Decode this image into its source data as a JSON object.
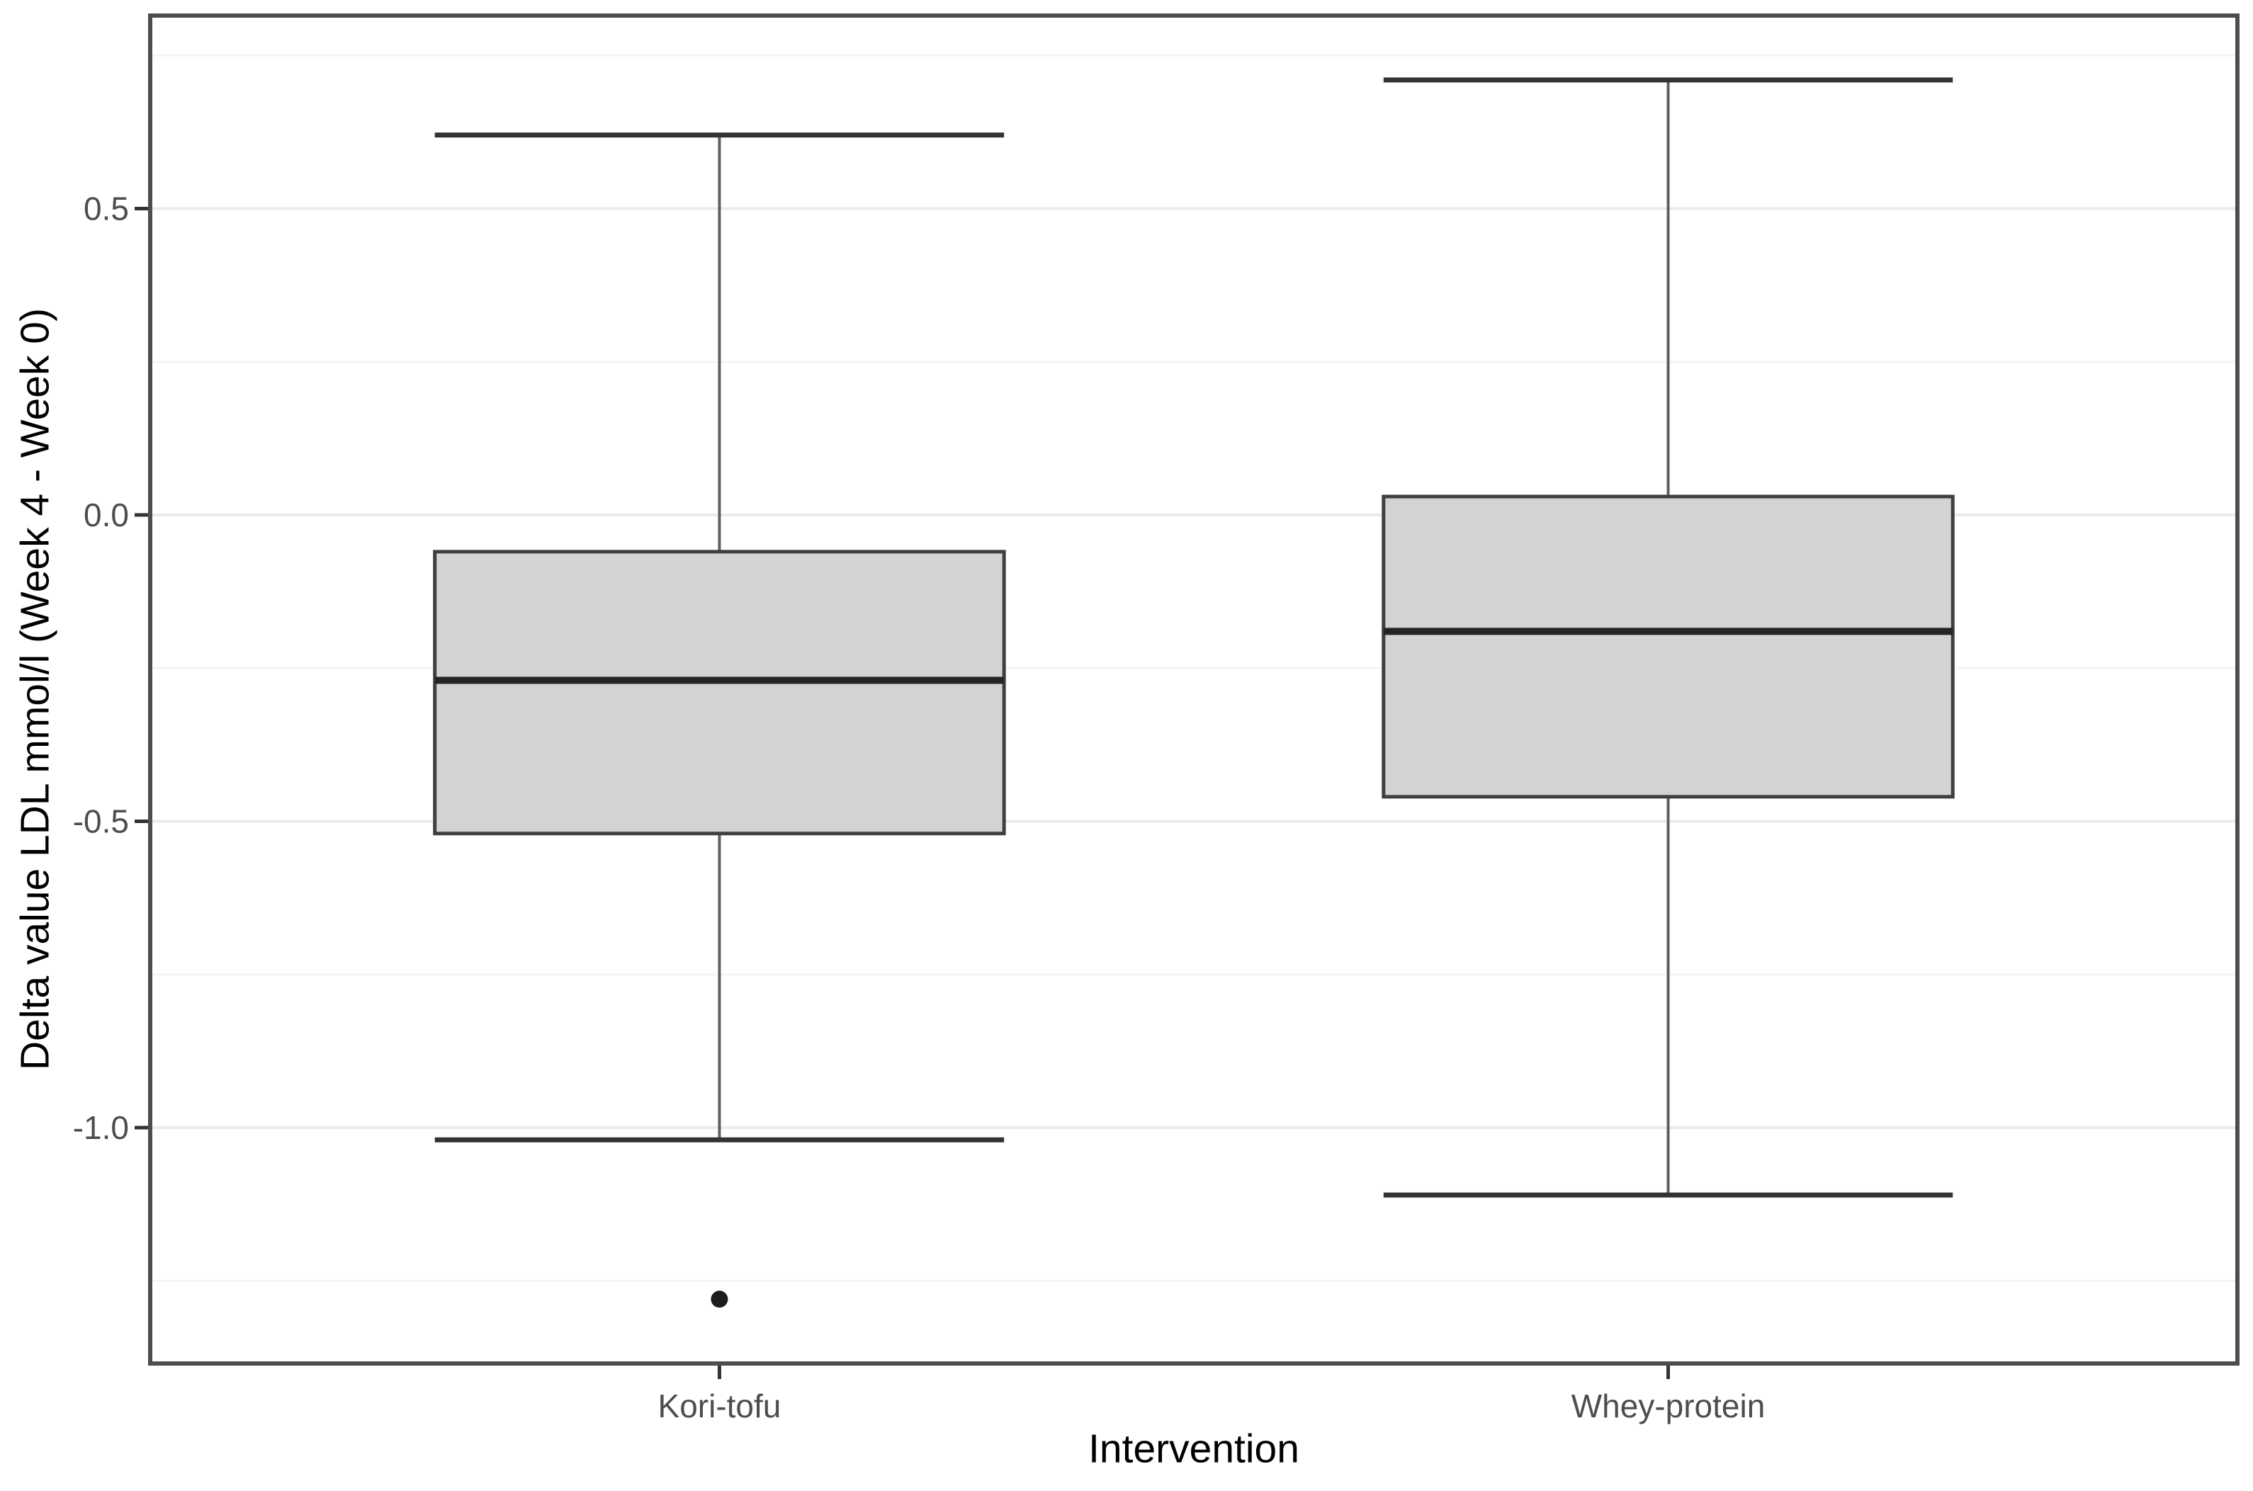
{
  "chart_data": {
    "type": "boxplot",
    "xlabel": "Intervention",
    "ylabel": "Delta value LDL mmol/l (Week 4 - Week 0)",
    "categories": [
      "Kori-tofu",
      "Whey-protein"
    ],
    "series": [
      {
        "name": "Kori-tofu",
        "whisker_low": -1.02,
        "q1": -0.52,
        "median": -0.27,
        "q3": -0.06,
        "whisker_high": 0.62,
        "outliers": [
          -1.28
        ]
      },
      {
        "name": "Whey-protein",
        "whisker_low": -1.11,
        "q1": -0.46,
        "median": -0.19,
        "q3": 0.03,
        "whisker_high": 0.71,
        "outliers": []
      }
    ],
    "y_axis": {
      "tick_values": [
        0.5,
        0.0,
        -0.5,
        -1.0
      ],
      "tick_labels": [
        "0.5",
        "0.0",
        "-0.5",
        "-1.0"
      ],
      "minor_gridlines": [
        0.75,
        0.25,
        -0.25,
        -0.75,
        -1.25
      ],
      "domain": [
        -1.385,
        0.815
      ]
    },
    "grid": {
      "major": true,
      "minor": true,
      "legend": "none"
    }
  },
  "style": {
    "background": "#ffffff",
    "panel_background": "#ffffff",
    "panel_border": "#4d4d4d",
    "grid_major": "#ebebeb",
    "grid_minor": "#f5f5f5",
    "box_fill": "#d3d3d4",
    "box_border": "#3f3f3f",
    "median_color": "#252525",
    "whisker_color": "#5f5f5f",
    "cap_color": "#333333",
    "outlier_color": "#1c1c1c",
    "tick_mark_color": "#333333",
    "tick_label_color": "#4d4d4d",
    "axis_title_color": "#000000"
  }
}
